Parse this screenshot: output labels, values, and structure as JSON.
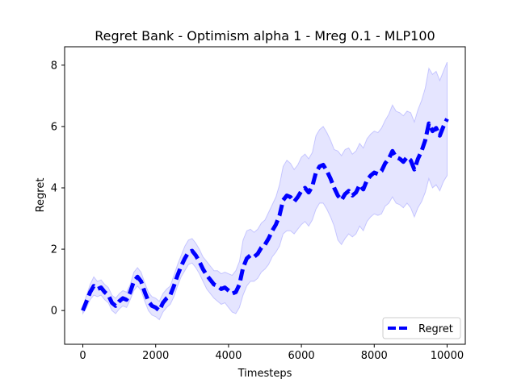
{
  "chart_data": {
    "type": "line",
    "title": "Regret Bank - Optimism alpha 1 - Mreg 0.1 - MLP100",
    "xlabel": "Timesteps",
    "ylabel": "Regret",
    "xlim": [
      -500,
      10500
    ],
    "ylim": [
      -1.1,
      8.6
    ],
    "xticks": [
      0,
      2000,
      4000,
      6000,
      8000,
      10000
    ],
    "yticks": [
      0,
      2,
      4,
      6,
      8
    ],
    "grid": false,
    "legend_position": "lower-right",
    "colors": {
      "line": "#0000ff",
      "band": "#0000ff"
    },
    "series": [
      {
        "name": "Regret",
        "style": "dashed",
        "x": [
          0,
          100,
          200,
          300,
          400,
          500,
          600,
          700,
          800,
          900,
          1000,
          1100,
          1200,
          1300,
          1400,
          1500,
          1600,
          1700,
          1800,
          1900,
          2000,
          2100,
          2200,
          2300,
          2400,
          2500,
          2600,
          2700,
          2800,
          2900,
          3000,
          3100,
          3200,
          3300,
          3400,
          3500,
          3600,
          3700,
          3800,
          3900,
          4000,
          4100,
          4200,
          4300,
          4400,
          4500,
          4600,
          4700,
          4800,
          4900,
          5000,
          5100,
          5200,
          5300,
          5400,
          5500,
          5600,
          5700,
          5800,
          5900,
          6000,
          6100,
          6200,
          6300,
          6400,
          6500,
          6600,
          6700,
          6800,
          6900,
          7000,
          7100,
          7200,
          7300,
          7400,
          7500,
          7600,
          7700,
          7800,
          7900,
          8000,
          8100,
          8200,
          8300,
          8400,
          8500,
          8600,
          8700,
          8800,
          8900,
          9000,
          9100,
          9200,
          9300,
          9400,
          9500,
          9600,
          9700,
          9800,
          9900,
          10000
        ],
        "values": [
          0.0,
          0.3,
          0.6,
          0.8,
          0.7,
          0.75,
          0.6,
          0.5,
          0.25,
          0.15,
          0.3,
          0.4,
          0.35,
          0.6,
          0.95,
          1.1,
          0.95,
          0.6,
          0.3,
          0.15,
          0.1,
          0.0,
          0.25,
          0.4,
          0.5,
          0.8,
          1.15,
          1.45,
          1.7,
          1.9,
          1.95,
          1.8,
          1.6,
          1.35,
          1.15,
          1.0,
          0.85,
          0.8,
          0.7,
          0.75,
          0.65,
          0.55,
          0.6,
          0.85,
          1.4,
          1.7,
          1.8,
          1.75,
          1.85,
          2.05,
          2.15,
          2.35,
          2.6,
          2.8,
          3.1,
          3.6,
          3.75,
          3.7,
          3.55,
          3.7,
          3.9,
          4.0,
          3.85,
          4.05,
          4.5,
          4.7,
          4.75,
          4.55,
          4.3,
          4.0,
          3.75,
          3.6,
          3.8,
          3.9,
          3.75,
          3.85,
          4.1,
          3.95,
          4.25,
          4.4,
          4.5,
          4.45,
          4.55,
          4.8,
          4.95,
          5.2,
          5.0,
          4.95,
          4.85,
          5.0,
          4.9,
          4.6,
          4.95,
          5.2,
          5.55,
          6.1,
          5.85,
          5.95,
          5.7,
          6.0,
          6.25
        ],
        "lower": [
          -0.1,
          0.1,
          0.35,
          0.5,
          0.45,
          0.5,
          0.35,
          0.25,
          0.0,
          -0.1,
          0.05,
          0.15,
          0.1,
          0.35,
          0.65,
          0.8,
          0.65,
          0.3,
          0.0,
          -0.15,
          -0.2,
          -0.3,
          -0.05,
          0.1,
          0.2,
          0.45,
          0.8,
          1.1,
          1.3,
          1.5,
          1.55,
          1.4,
          1.2,
          0.95,
          0.7,
          0.55,
          0.4,
          0.3,
          0.2,
          0.25,
          0.1,
          -0.05,
          -0.1,
          0.1,
          0.5,
          0.8,
          0.95,
          0.95,
          1.05,
          1.25,
          1.35,
          1.5,
          1.75,
          1.9,
          2.1,
          2.5,
          2.6,
          2.6,
          2.5,
          2.65,
          2.8,
          2.9,
          2.75,
          2.95,
          3.3,
          3.5,
          3.5,
          3.3,
          3.05,
          2.75,
          2.3,
          2.15,
          2.35,
          2.5,
          2.4,
          2.5,
          2.75,
          2.6,
          2.9,
          3.05,
          3.15,
          3.1,
          3.15,
          3.4,
          3.5,
          3.7,
          3.5,
          3.45,
          3.35,
          3.5,
          3.35,
          3.05,
          3.35,
          3.55,
          3.85,
          4.3,
          4.0,
          4.1,
          3.9,
          4.2,
          4.4
        ],
        "upper": [
          0.1,
          0.5,
          0.85,
          1.1,
          0.95,
          1.0,
          0.85,
          0.75,
          0.5,
          0.4,
          0.55,
          0.65,
          0.6,
          0.85,
          1.25,
          1.4,
          1.25,
          0.9,
          0.6,
          0.45,
          0.4,
          0.3,
          0.55,
          0.7,
          0.8,
          1.15,
          1.5,
          1.8,
          2.1,
          2.3,
          2.35,
          2.2,
          2.0,
          1.75,
          1.6,
          1.45,
          1.3,
          1.3,
          1.2,
          1.25,
          1.2,
          1.15,
          1.3,
          1.6,
          2.3,
          2.6,
          2.65,
          2.55,
          2.65,
          2.85,
          2.95,
          3.2,
          3.45,
          3.7,
          4.1,
          4.7,
          4.9,
          4.8,
          4.6,
          4.75,
          5.0,
          5.1,
          4.95,
          5.15,
          5.7,
          5.9,
          6.0,
          5.8,
          5.55,
          5.25,
          5.2,
          5.05,
          5.25,
          5.3,
          5.1,
          5.2,
          5.45,
          5.3,
          5.6,
          5.75,
          5.85,
          5.8,
          5.95,
          6.2,
          6.4,
          6.7,
          6.5,
          6.45,
          6.35,
          6.5,
          6.45,
          6.15,
          6.55,
          6.85,
          7.25,
          7.9,
          7.7,
          7.8,
          7.5,
          7.8,
          8.1
        ]
      }
    ]
  }
}
